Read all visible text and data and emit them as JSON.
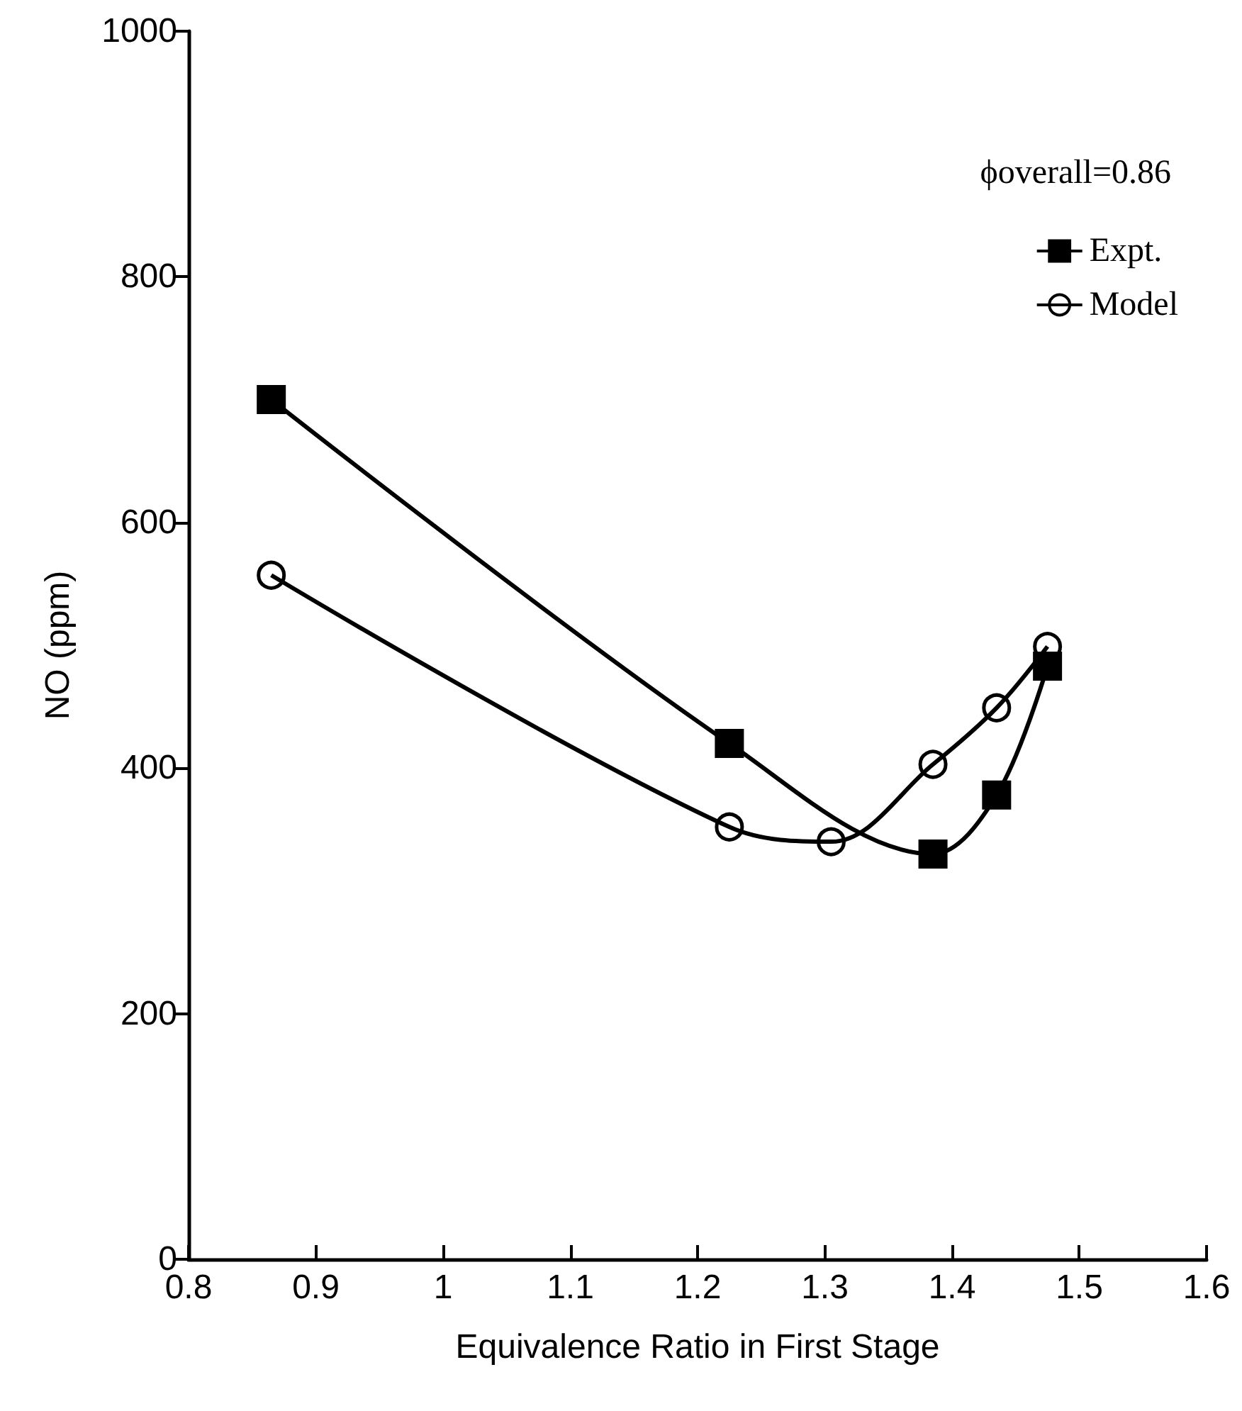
{
  "chart_data": {
    "type": "line",
    "xlabel": "Equivalence Ratio in First Stage",
    "ylabel": "NO (ppm)",
    "legend_title": "ϕoverall=0.86",
    "xlim": [
      0.8,
      1.6
    ],
    "xticks": [
      0.8,
      0.9,
      1,
      1.1,
      1.2,
      1.3,
      1.4,
      1.5,
      1.6
    ],
    "ylim": [
      0,
      1000
    ],
    "yticks": [
      0,
      200,
      400,
      600,
      800,
      1000
    ],
    "grid": false,
    "legend": "top right",
    "series": [
      {
        "name": "Expt.",
        "color": "#000000",
        "marker": "square",
        "x": [
          0.865,
          1.225,
          1.385,
          1.435,
          1.475
        ],
        "values": [
          700,
          420,
          330,
          378,
          483
        ]
      },
      {
        "name": "Model",
        "color": "#000000",
        "marker": "circle",
        "x": [
          0.865,
          1.225,
          1.305,
          1.385,
          1.435,
          1.475
        ],
        "values": [
          557,
          352,
          340,
          403,
          449,
          499
        ]
      }
    ]
  }
}
